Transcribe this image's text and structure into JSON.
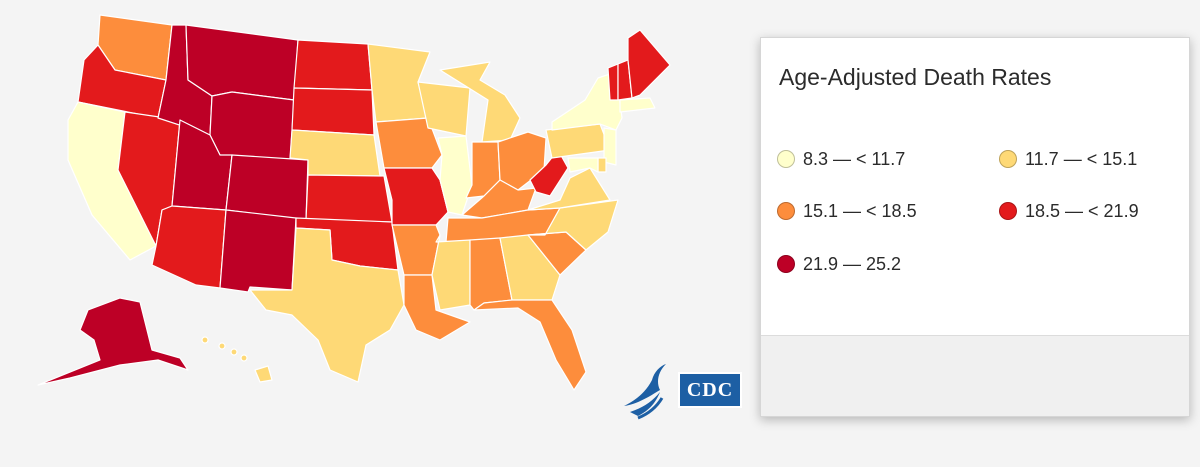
{
  "legend": {
    "title": "Age-Adjusted Death Rates",
    "bins": [
      {
        "label": "8.3 — < 11.7",
        "color": "#ffffcc"
      },
      {
        "label": "11.7 — < 15.1",
        "color": "#fed976"
      },
      {
        "label": "15.1 — < 18.5",
        "color": "#fd8d3c"
      },
      {
        "label": "18.5 — < 21.9",
        "color": "#e31a1c"
      },
      {
        "label": "21.9 — 25.2",
        "color": "#bd0026"
      }
    ]
  },
  "states": {
    "WA": 2,
    "OR": 3,
    "CA": 0,
    "NV": 3,
    "ID": 4,
    "MT": 4,
    "WY": 4,
    "UT": 4,
    "AZ": 3,
    "CO": 4,
    "NM": 4,
    "ND": 3,
    "SD": 3,
    "NE": 1,
    "KS": 3,
    "OK": 3,
    "TX": 1,
    "MN": 1,
    "IA": 2,
    "MO": 3,
    "AR": 2,
    "LA": 2,
    "WI": 1,
    "IL": 0,
    "MI": 1,
    "IN": 2,
    "OH": 2,
    "KY": 2,
    "TN": 2,
    "MS": 1,
    "AL": 2,
    "GA": 1,
    "FL": 2,
    "SC": 2,
    "NC": 1,
    "VA": 1,
    "WV": 3,
    "PA": 1,
    "NY": 0,
    "ME": 3,
    "VT": 3,
    "NH": 3,
    "MA": 0,
    "NJ": 0,
    "MD": 0,
    "DE": 1,
    "AK": 4,
    "HI": 1
  },
  "logos": {
    "cdc_text": "CDC"
  }
}
